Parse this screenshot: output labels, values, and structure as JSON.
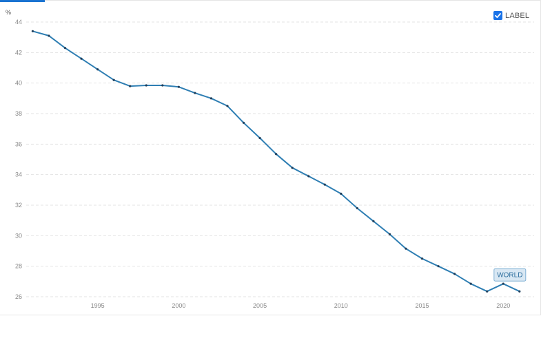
{
  "ui": {
    "label_toggle": "LABEL",
    "label_checked": true,
    "accent_color": "#1a73d1",
    "line_color": "#2e7eb3"
  },
  "chart_data": {
    "type": "line",
    "ylabel": "%",
    "ylim": [
      26,
      44
    ],
    "y_ticks": [
      44,
      42,
      40,
      38,
      36,
      34,
      32,
      30,
      28,
      26
    ],
    "x_ticks": [
      1995,
      2000,
      2005,
      2010,
      2015,
      2020
    ],
    "xlim": [
      1990.6,
      2021.9
    ],
    "grid": true,
    "series": [
      {
        "name": "WORLD",
        "x": [
          1991,
          1992,
          1993,
          1994,
          1995,
          1996,
          1997,
          1998,
          1999,
          2000,
          2001,
          2002,
          2003,
          2004,
          2005,
          2006,
          2007,
          2008,
          2009,
          2010,
          2011,
          2012,
          2013,
          2014,
          2015,
          2016,
          2017,
          2018,
          2019,
          2020,
          2021
        ],
        "values": [
          43.4,
          43.1,
          42.3,
          41.6,
          40.9,
          40.2,
          39.8,
          39.85,
          39.85,
          39.75,
          39.35,
          39.0,
          38.5,
          37.4,
          36.4,
          35.35,
          34.45,
          33.9,
          33.35,
          32.75,
          31.8,
          30.95,
          30.1,
          29.15,
          28.5,
          28.0,
          27.5,
          26.85,
          26.35,
          26.85,
          26.35
        ]
      }
    ]
  }
}
